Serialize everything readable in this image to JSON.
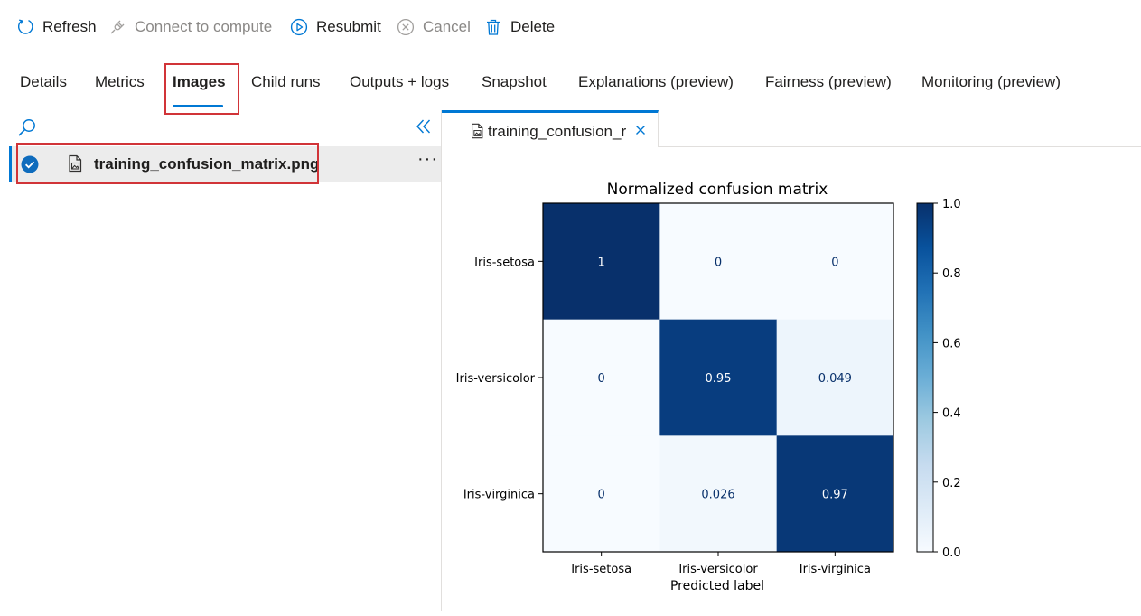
{
  "toolbar": {
    "refresh": "Refresh",
    "connect": "Connect to compute",
    "resubmit": "Resubmit",
    "cancel": "Cancel",
    "delete": "Delete"
  },
  "tabs": [
    "Details",
    "Metrics",
    "Images",
    "Child runs",
    "Outputs + logs",
    "Snapshot",
    "Explanations (preview)",
    "Fairness (preview)",
    "Monitoring (preview)"
  ],
  "active_tab": "Images",
  "file_list": {
    "items": [
      {
        "name": "training_confusion_matrix.png",
        "selected": true
      }
    ]
  },
  "viewer": {
    "tab_label": "training_confusion_r"
  },
  "colors": {
    "accent": "#0078d4",
    "highlight": "#d13438"
  },
  "chart_data": {
    "type": "heatmap",
    "title": "Normalized confusion matrix",
    "xlabel": "Predicted label",
    "ylabel": "",
    "row_labels": [
      "Iris-setosa",
      "Iris-versicolor",
      "Iris-virginica"
    ],
    "col_labels": [
      "Iris-setosa",
      "Iris-versicolor",
      "Iris-virginica"
    ],
    "values": [
      [
        1,
        0,
        0
      ],
      [
        0,
        0.95,
        0.049
      ],
      [
        0,
        0.026,
        0.97
      ]
    ],
    "cell_labels": [
      [
        "1",
        "0",
        "0"
      ],
      [
        "0",
        "0.95",
        "0.049"
      ],
      [
        "0",
        "0.026",
        "0.97"
      ]
    ],
    "colorbar": {
      "range": [
        0,
        1
      ],
      "ticks": [
        "0.0",
        "0.2",
        "0.4",
        "0.6",
        "0.8",
        "1.0"
      ],
      "colormap": "Blues"
    }
  }
}
